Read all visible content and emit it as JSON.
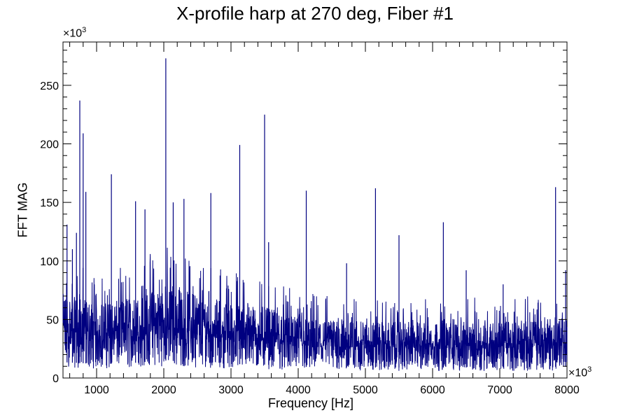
{
  "chart_data": {
    "type": "line",
    "title": "X-profile harp at 270 deg, Fiber #1",
    "xlabel": "Frequency [Hz]",
    "ylabel": "FFT MAG",
    "x_multiplier": "×10",
    "y_multiplier": "×10",
    "multiplier_exponent": "3",
    "xlim": [
      500,
      8000
    ],
    "ylim": [
      0,
      287
    ],
    "x_ticks": [
      "1000",
      "2000",
      "3000",
      "4000",
      "5000",
      "6000",
      "7000",
      "8000"
    ],
    "y_ticks": [
      "0",
      "50",
      "100",
      "150",
      "200",
      "250"
    ],
    "grid": false,
    "line_color": "#000080",
    "series": [
      {
        "peaks_x": [
          560,
          640,
          700,
          750,
          800,
          840,
          1220,
          1580,
          1720,
          2030,
          2140,
          2300,
          2700,
          3130,
          3500,
          3560,
          4120,
          4720,
          5150,
          5500,
          6160,
          6500,
          7050,
          7830,
          7980
        ],
        "peaks_y": [
          131,
          110,
          124,
          237,
          209,
          159,
          174,
          151,
          144,
          273,
          150,
          153,
          158,
          199,
          225,
          116,
          160,
          98,
          162,
          122,
          133,
          92,
          80,
          163,
          92
        ],
        "noise_level": [
          [
            500,
            45
          ],
          [
            1000,
            40
          ],
          [
            1500,
            42
          ],
          [
            2000,
            50
          ],
          [
            2500,
            45
          ],
          [
            3000,
            40
          ],
          [
            3500,
            38
          ],
          [
            4000,
            32
          ],
          [
            5000,
            30
          ],
          [
            6000,
            30
          ],
          [
            7000,
            30
          ],
          [
            8000,
            32
          ]
        ]
      }
    ]
  }
}
